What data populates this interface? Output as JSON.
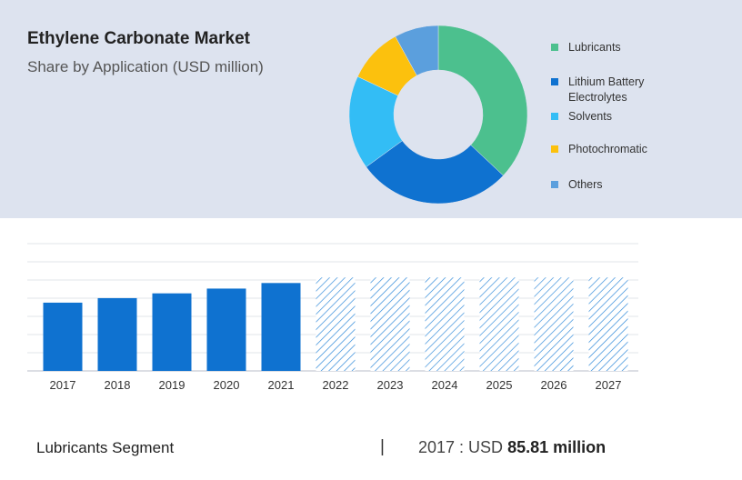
{
  "title": "Ethylene Carbonate Market",
  "subtitle": "Share by Application (USD million)",
  "colors": {
    "panel_bg": "#dde3ef",
    "bar_actual": "#0f72d0",
    "bar_forecast_hatch": "#2a86d8"
  },
  "chart_data": [
    {
      "type": "pie",
      "variant": "donut",
      "slices": [
        {
          "label": "Lubricants",
          "value": 37,
          "color": "#4cc08e"
        },
        {
          "label": "Lithium Battery Electrolytes",
          "value": 28,
          "color": "#0f72d0"
        },
        {
          "label": "Solvents",
          "value": 17,
          "color": "#33bdf5"
        },
        {
          "label": "Photochromatic",
          "value": 10,
          "color": "#fcc10d"
        },
        {
          "label": "Others",
          "value": 8,
          "color": "#5b9fdd"
        }
      ],
      "legend_placement": "right"
    },
    {
      "type": "bar",
      "categories": [
        "2017",
        "2018",
        "2019",
        "2020",
        "2021",
        "2022",
        "2023",
        "2024",
        "2025",
        "2026",
        "2027"
      ],
      "values": [
        85.81,
        91.5,
        97.5,
        103.5,
        110.5,
        117.5,
        117.5,
        117.5,
        117.5,
        117.5,
        117.5
      ],
      "forecast": [
        false,
        false,
        false,
        false,
        false,
        true,
        true,
        true,
        true,
        true,
        true
      ],
      "ylim": [
        0,
        160
      ],
      "grid": true
    }
  ],
  "footer": {
    "segment": "Lubricants Segment",
    "separator": "|",
    "year_text": "2017 : USD ",
    "value_text": "85.81 million"
  }
}
